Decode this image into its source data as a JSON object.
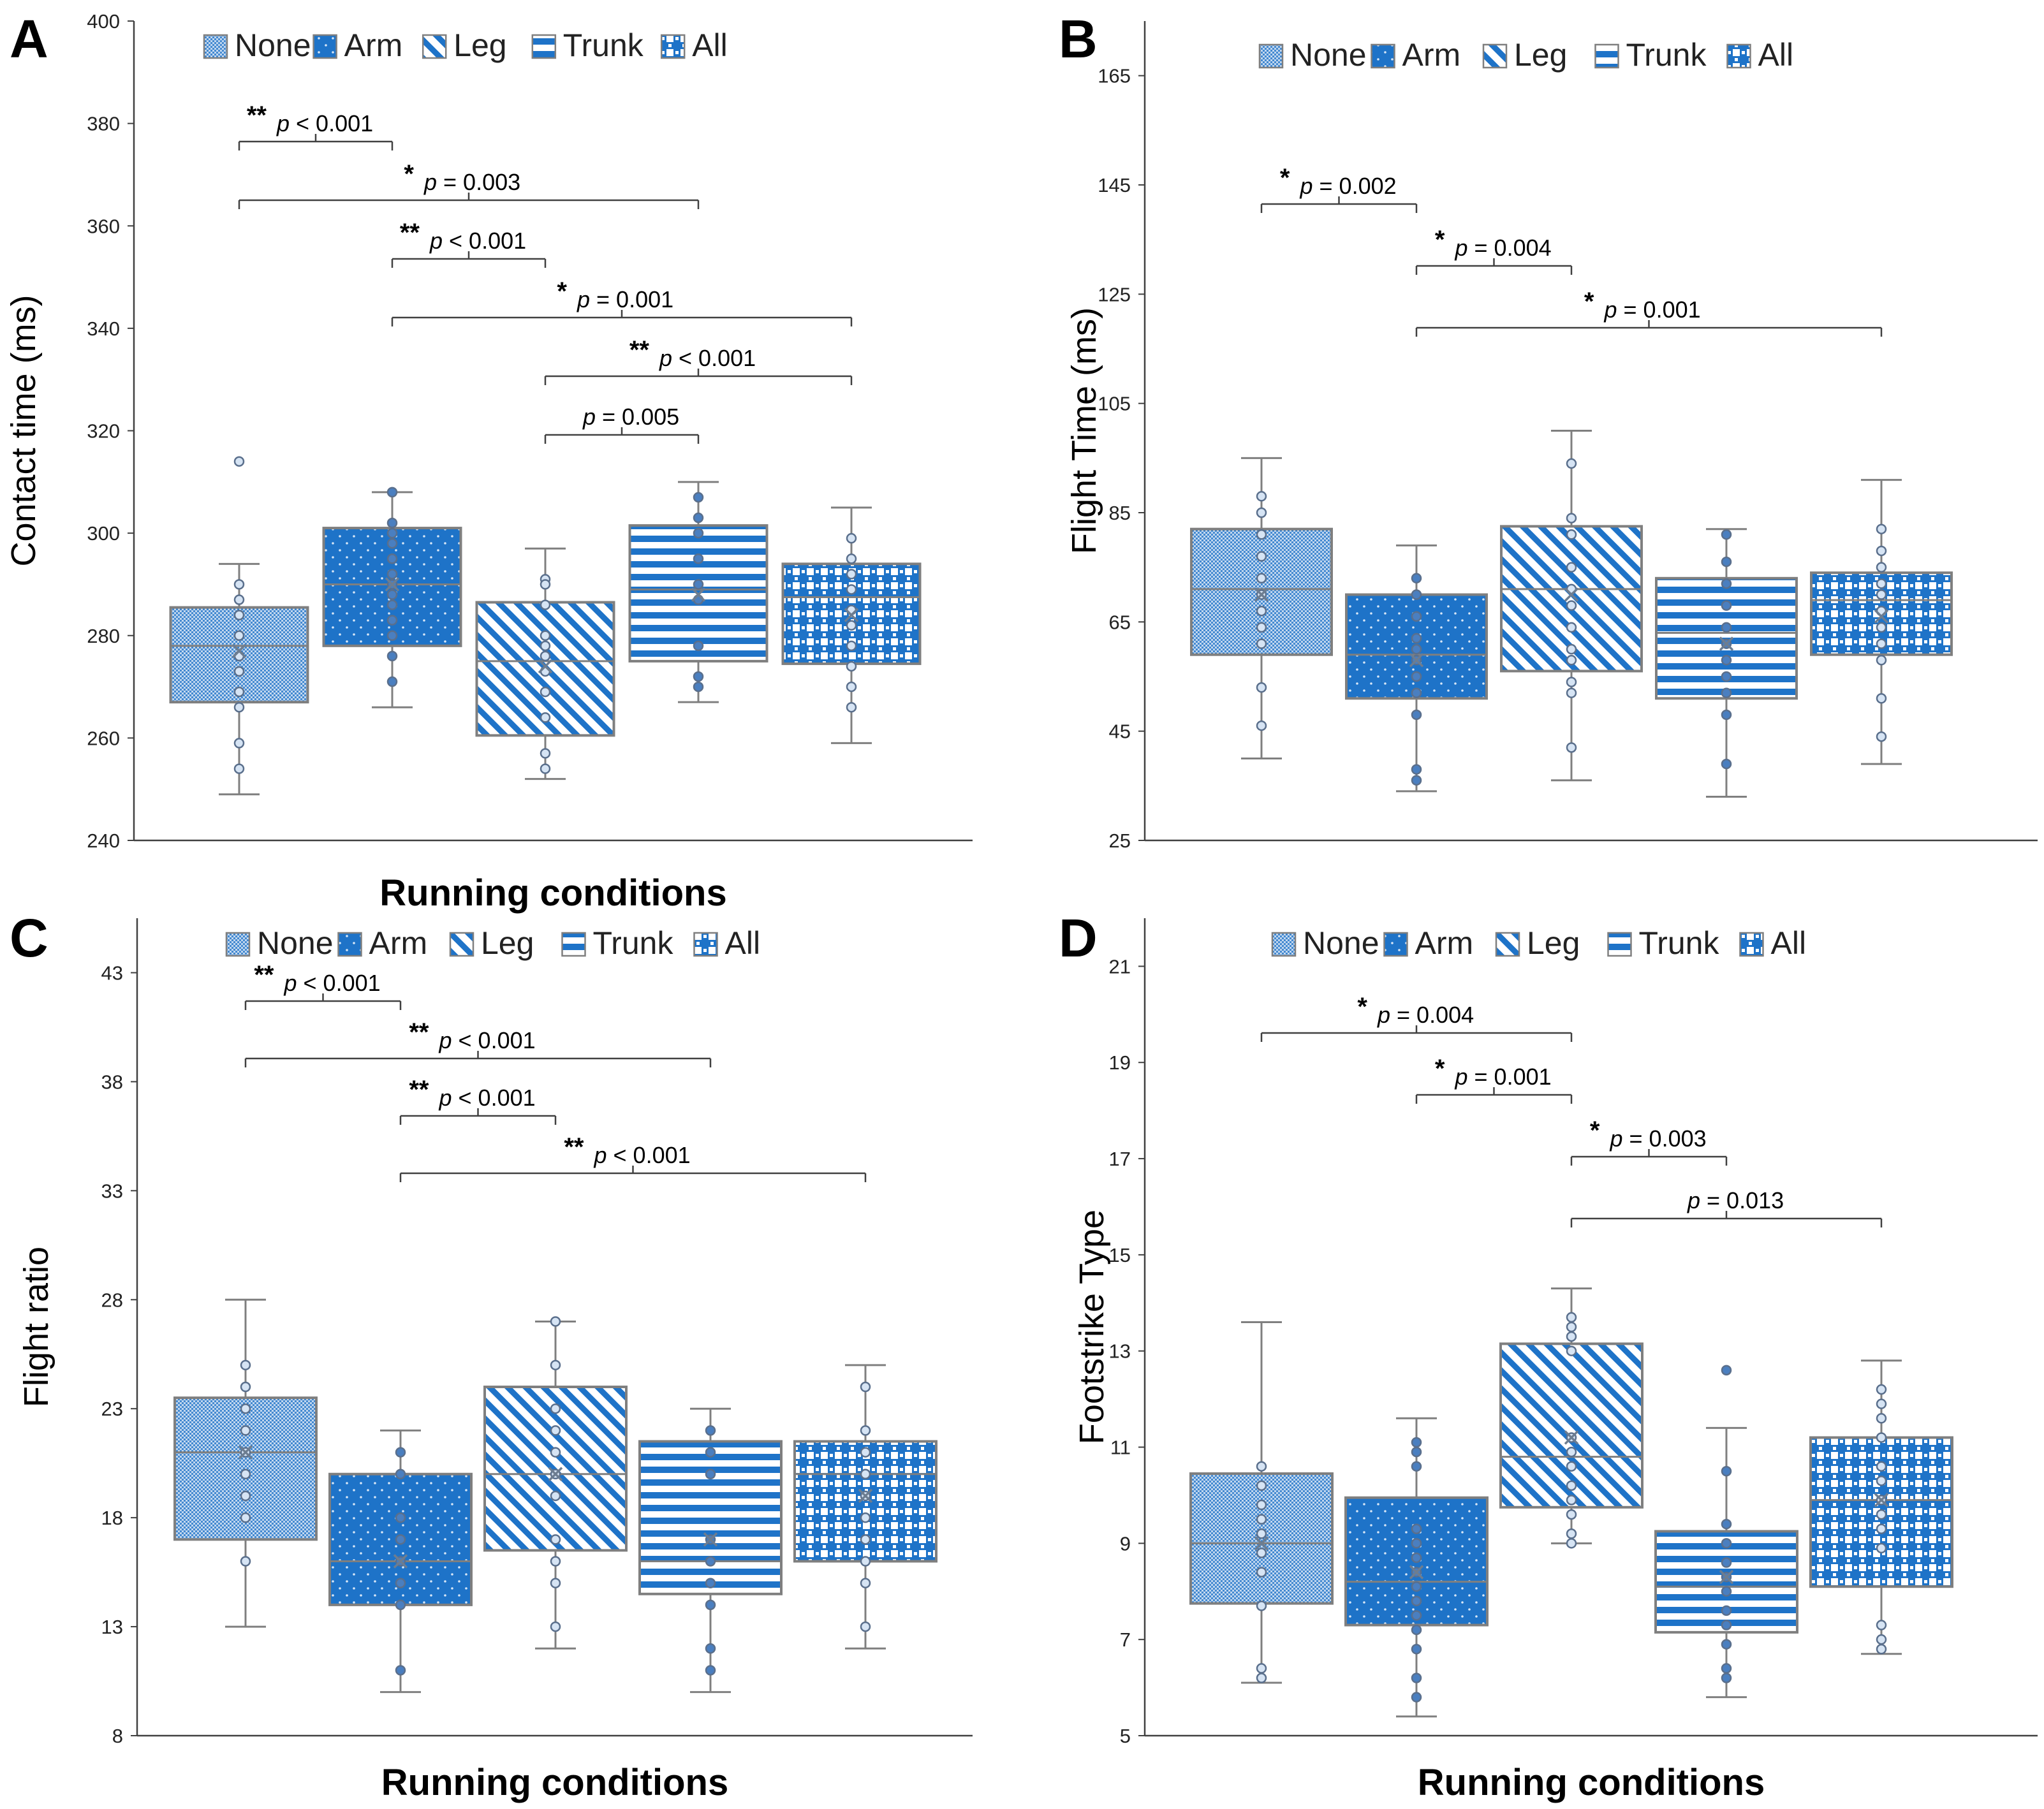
{
  "colors": {
    "fill": "#1e73c8",
    "edge": "#7f7f7f",
    "dot_fill": "#4a7fc0",
    "dot_edge": "#5a6f8c",
    "axis": "#404040",
    "text": "#000000"
  },
  "legend": {
    "entries": [
      {
        "name": "None",
        "pattern": "dense-dots"
      },
      {
        "name": "Arm",
        "pattern": "solid-small-dots"
      },
      {
        "name": "Leg",
        "pattern": "diagonal-stripes"
      },
      {
        "name": "Trunk",
        "pattern": "horizontal-stripes"
      },
      {
        "name": "All",
        "pattern": "checker"
      }
    ]
  },
  "chart_data": [
    {
      "panel": "A",
      "type": "box",
      "title": "",
      "xlabel": "Running conditions",
      "ylabel": "Contact time (ms)",
      "ylim": [
        240,
        400
      ],
      "ticks": [
        240,
        260,
        280,
        300,
        320,
        340,
        360,
        380,
        400
      ],
      "categories": [
        "None",
        "Arm",
        "Leg",
        "Trunk",
        "All"
      ],
      "boxes": [
        {
          "min": 249,
          "q1": 267,
          "median": 278,
          "q3": 285.5,
          "max": 294,
          "mean": 277,
          "points": [
            314,
            290,
            287,
            284,
            280,
            276,
            273,
            269,
            266,
            259,
            254
          ]
        },
        {
          "min": 266,
          "q1": 278,
          "median": 290,
          "q3": 301,
          "max": 308,
          "mean": 290,
          "points": [
            308,
            302,
            300,
            298,
            295,
            292,
            290,
            288,
            286,
            283,
            280,
            276,
            271
          ]
        },
        {
          "min": 252,
          "q1": 260.5,
          "median": 275,
          "q3": 286.5,
          "max": 297,
          "mean": 274,
          "points": [
            291,
            290,
            286,
            280,
            278,
            276,
            273,
            269,
            264,
            257,
            254
          ]
        },
        {
          "min": 267,
          "q1": 275,
          "median": 289,
          "q3": 301.5,
          "max": 310,
          "mean": 288,
          "points": [
            307,
            303,
            300,
            295,
            290,
            287,
            278,
            272,
            270
          ]
        },
        {
          "min": 259,
          "q1": 274.5,
          "median": 287.5,
          "q3": 294,
          "max": 305,
          "mean": 284,
          "points": [
            299,
            295,
            292,
            289,
            285,
            282,
            278,
            274,
            270,
            266
          ]
        }
      ],
      "comparisons": [
        {
          "from": "None",
          "to": "Arm",
          "stars": "**",
          "label": "p < 0.001"
        },
        {
          "from": "None",
          "to": "Trunk",
          "stars": "*",
          "label": "p  = 0.003"
        },
        {
          "from": "Arm",
          "to": "Leg",
          "stars": "**",
          "label": "p < 0.001"
        },
        {
          "from": "Arm",
          "to": "All",
          "stars": "*",
          "label": "p  = 0.001"
        },
        {
          "from": "Leg",
          "to": "All",
          "stars": "**",
          "label": "p < 0.001"
        },
        {
          "from": "Leg",
          "to": "Trunk",
          "stars": "",
          "label": "p = 0.005"
        }
      ]
    },
    {
      "panel": "B",
      "type": "box",
      "title": "",
      "xlabel": "",
      "ylabel": "Flight Time (ms)",
      "ylim": [
        25,
        175
      ],
      "ticks": [
        25,
        45,
        65,
        85,
        105,
        125,
        145,
        165
      ],
      "categories": [
        "None",
        "Arm",
        "Leg",
        "Trunk",
        "All"
      ],
      "boxes": [
        {
          "min": 40,
          "q1": 59,
          "median": 71,
          "q3": 82,
          "max": 95,
          "mean": 70,
          "points": [
            88,
            85,
            81,
            77,
            73,
            70,
            67,
            64,
            61,
            53,
            46
          ]
        },
        {
          "min": 34,
          "q1": 51,
          "median": 59,
          "q3": 70,
          "max": 79,
          "mean": 58,
          "points": [
            73,
            70,
            66,
            62,
            60,
            58,
            55,
            52,
            48,
            38,
            36
          ]
        },
        {
          "min": 36,
          "q1": 56,
          "median": 71,
          "q3": 82.5,
          "max": 100,
          "mean": 70,
          "points": [
            94,
            84,
            81,
            75,
            71,
            68,
            64,
            60,
            58,
            54,
            52,
            42
          ]
        },
        {
          "min": 33,
          "q1": 51,
          "median": 63,
          "q3": 73,
          "max": 82,
          "mean": 61,
          "points": [
            81,
            76,
            72,
            68,
            64,
            61,
            58,
            55,
            52,
            48,
            39
          ]
        },
        {
          "min": 39,
          "q1": 59,
          "median": 69,
          "q3": 74,
          "max": 91,
          "mean": 66,
          "points": [
            82,
            78,
            75,
            72,
            70,
            67,
            64,
            61,
            58,
            51,
            44
          ]
        }
      ],
      "comparisons": [
        {
          "from": "None",
          "to": "Arm",
          "stars": "*",
          "label": "p = 0.002"
        },
        {
          "from": "Arm",
          "to": "Leg",
          "stars": "*",
          "label": "p = 0.004"
        },
        {
          "from": "Arm",
          "to": "All",
          "stars": "*",
          "label": "p  = 0.001"
        }
      ]
    },
    {
      "panel": "C",
      "type": "box",
      "title": "",
      "xlabel": "Running conditions",
      "ylabel": "Flight ratio",
      "ylim": [
        8,
        45.5
      ],
      "ticks": [
        8,
        13,
        18,
        23,
        28,
        33,
        38,
        43
      ],
      "categories": [
        "None",
        "Arm",
        "Leg",
        "Trunk",
        "All"
      ],
      "boxes": [
        {
          "min": 13,
          "q1": 17,
          "median": 21,
          "q3": 23.5,
          "max": 28,
          "mean": 21,
          "points": [
            25,
            24,
            23,
            22,
            21,
            20,
            19,
            18,
            16
          ]
        },
        {
          "min": 10,
          "q1": 14,
          "median": 16,
          "q3": 20,
          "max": 22,
          "mean": 16,
          "points": [
            21,
            20,
            18,
            17,
            16,
            15,
            14,
            11
          ]
        },
        {
          "min": 12,
          "q1": 16.5,
          "median": 20,
          "q3": 24,
          "max": 27,
          "mean": 20,
          "points": [
            27,
            25,
            23,
            22,
            21,
            20,
            19,
            17,
            16,
            15,
            13
          ]
        },
        {
          "min": 10,
          "q1": 14.5,
          "median": 16,
          "q3": 21.5,
          "max": 23,
          "mean": 17,
          "points": [
            22,
            21,
            20,
            17,
            16,
            15,
            14,
            12,
            11
          ]
        },
        {
          "min": 12,
          "q1": 16,
          "median": 20,
          "q3": 21.5,
          "max": 25,
          "mean": 19,
          "points": [
            24,
            22,
            21,
            20,
            19,
            18,
            17,
            16,
            15,
            13
          ]
        }
      ],
      "comparisons": [
        {
          "from": "None",
          "to": "Arm",
          "stars": "**",
          "label": "p < 0.001"
        },
        {
          "from": "None",
          "to": "Trunk",
          "stars": "**",
          "label": "p < 0.001"
        },
        {
          "from": "Arm",
          "to": "Leg",
          "stars": "**",
          "label": "p < 0.001"
        },
        {
          "from": "Arm",
          "to": "All",
          "stars": "**",
          "label": "p < 0.001"
        }
      ]
    },
    {
      "panel": "D",
      "type": "box",
      "title": "",
      "xlabel": "Running conditions",
      "ylabel": "Footstrike Type",
      "ylim": [
        5,
        22
      ],
      "ticks": [
        5,
        7,
        9,
        11,
        13,
        15,
        17,
        19,
        21
      ],
      "categories": [
        "None",
        "Arm",
        "Leg",
        "Trunk",
        "All"
      ],
      "boxes": [
        {
          "min": 6.1,
          "q1": 7.75,
          "median": 9,
          "q3": 10.45,
          "max": 13.6,
          "mean": 9,
          "points": [
            10.6,
            10.2,
            9.8,
            9.5,
            9.2,
            8.8,
            8.4,
            7.7,
            6.4,
            6.2
          ]
        },
        {
          "min": 5.4,
          "q1": 7.3,
          "median": 8.2,
          "q3": 9.95,
          "max": 11.6,
          "mean": 8.4,
          "points": [
            11.1,
            10.9,
            10.6,
            9.3,
            9.0,
            8.7,
            8.4,
            8.1,
            7.8,
            7.5,
            7.2,
            6.8,
            6.2,
            5.8
          ]
        },
        {
          "min": 9,
          "q1": 9.75,
          "median": 10.8,
          "q3": 13.15,
          "max": 14.3,
          "mean": 11.2,
          "points": [
            13.7,
            13.5,
            13.3,
            13.0,
            11.2,
            10.9,
            10.6,
            10.2,
            9.9,
            9.6,
            9.2,
            9.0
          ]
        },
        {
          "min": 5.8,
          "q1": 7.15,
          "median": 8.1,
          "q3": 9.25,
          "max": 11.4,
          "mean": 8.3,
          "points": [
            12.6,
            10.5,
            9.4,
            9.0,
            8.6,
            8.3,
            8.0,
            7.6,
            7.3,
            6.9,
            6.4,
            6.2
          ]
        },
        {
          "min": 6.7,
          "q1": 8.1,
          "median": 9.9,
          "q3": 11.2,
          "max": 12.8,
          "mean": 9.9,
          "points": [
            12.2,
            11.9,
            11.6,
            11.2,
            10.6,
            10.3,
            9.9,
            9.6,
            9.3,
            8.9,
            7.3,
            7.0,
            6.8
          ]
        }
      ],
      "comparisons": [
        {
          "from": "None",
          "to": "Leg",
          "stars": "*",
          "label": "p = 0.004"
        },
        {
          "from": "Arm",
          "to": "Leg",
          "stars": "*",
          "label": "p = 0.001"
        },
        {
          "from": "Leg",
          "to": "Trunk",
          "stars": "*",
          "label": "p = 0.003"
        },
        {
          "from": "Leg",
          "to": "All",
          "stars": "",
          "label": "p = 0.013"
        }
      ]
    }
  ]
}
